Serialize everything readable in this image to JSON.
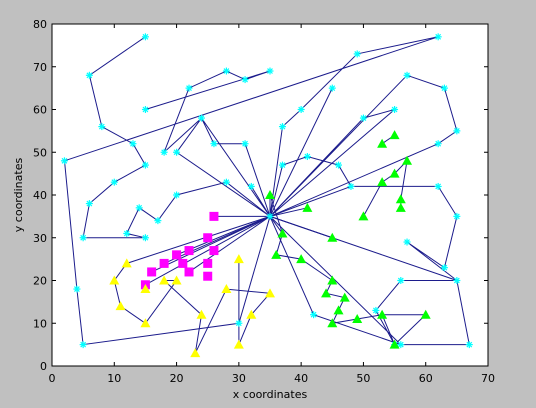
{
  "chart_data": {
    "type": "scatter",
    "xlabel": "x coordinates",
    "ylabel": "y coordinates",
    "xlim": [
      0,
      70
    ],
    "ylim": [
      0,
      80
    ],
    "xticks": [
      0,
      10,
      20,
      30,
      40,
      50,
      60,
      70
    ],
    "yticks": [
      0,
      10,
      20,
      30,
      40,
      50,
      60,
      70,
      80
    ],
    "grid": false,
    "background": "#ffffff",
    "figure_background": "#c0c0c0",
    "hub": [
      35,
      35
    ],
    "tour": {
      "color": "#1c1c8c",
      "marker": "asterisk",
      "marker_color": "#00ffff",
      "points": [
        [
          15,
          77
        ],
        [
          6,
          68
        ],
        [
          8,
          56
        ],
        [
          13,
          52
        ],
        [
          15,
          47
        ],
        [
          10,
          43
        ],
        [
          6,
          38
        ],
        [
          5,
          30
        ],
        [
          15,
          30
        ],
        [
          12,
          31
        ],
        [
          14,
          37
        ],
        [
          17,
          34
        ],
        [
          20,
          40
        ],
        [
          28,
          43
        ],
        [
          35,
          35
        ],
        [
          20,
          50
        ],
        [
          24,
          58
        ],
        [
          26,
          52
        ],
        [
          31,
          52
        ],
        [
          35,
          35
        ],
        [
          37,
          47
        ],
        [
          41,
          49
        ],
        [
          46,
          47
        ],
        [
          48,
          42
        ],
        [
          62,
          42
        ],
        [
          65,
          35
        ],
        [
          63,
          23
        ],
        [
          57,
          29
        ],
        [
          65,
          20
        ],
        [
          67,
          5
        ],
        [
          55,
          5
        ],
        [
          52,
          13
        ],
        [
          56,
          20
        ],
        [
          65,
          20
        ],
        [
          35,
          35
        ],
        [
          37,
          56
        ],
        [
          40,
          60
        ],
        [
          49,
          73
        ],
        [
          62,
          77
        ],
        [
          2,
          48
        ],
        [
          4,
          18
        ],
        [
          5,
          5
        ],
        [
          30,
          10
        ],
        [
          35,
          35
        ],
        [
          32,
          42
        ],
        [
          35,
          35
        ],
        [
          42,
          12
        ],
        [
          56,
          5
        ],
        [
          35,
          35
        ],
        [
          45,
          65
        ],
        [
          35,
          35
        ],
        [
          57,
          68
        ],
        [
          63,
          65
        ],
        [
          65,
          55
        ],
        [
          62,
          52
        ],
        [
          35,
          35
        ],
        [
          50,
          58
        ],
        [
          55,
          60
        ],
        [
          35,
          35
        ],
        [
          24,
          58
        ],
        [
          18,
          50
        ],
        [
          22,
          65
        ],
        [
          28,
          69
        ],
        [
          31,
          67
        ],
        [
          35,
          69
        ],
        [
          15,
          60
        ]
      ]
    },
    "squares": {
      "color": "#ff00ff",
      "marker": "square",
      "points": [
        [
          26,
          35
        ],
        [
          25,
          30
        ],
        [
          26,
          27
        ],
        [
          22,
          27
        ],
        [
          20,
          26
        ],
        [
          21,
          24
        ],
        [
          18,
          24
        ],
        [
          16,
          22
        ],
        [
          22,
          22
        ],
        [
          25,
          24
        ],
        [
          15,
          19
        ],
        [
          25,
          21
        ]
      ]
    },
    "yellow_triangles": {
      "color": "#ffff00",
      "marker": "triangle",
      "points": [
        [
          12,
          24
        ],
        [
          10,
          20
        ],
        [
          15,
          18
        ],
        [
          18,
          20
        ],
        [
          20,
          20
        ],
        [
          11,
          14
        ],
        [
          15,
          10
        ],
        [
          24,
          12
        ],
        [
          23,
          3
        ],
        [
          30,
          5
        ],
        [
          32,
          12
        ],
        [
          35,
          17
        ],
        [
          28,
          18
        ],
        [
          30,
          25
        ]
      ]
    },
    "green_triangles": {
      "color": "#00ff00",
      "marker": "triangle",
      "points": [
        [
          35,
          40
        ],
        [
          37,
          31
        ],
        [
          36,
          26
        ],
        [
          40,
          25
        ],
        [
          41,
          37
        ],
        [
          45,
          30
        ],
        [
          50,
          35
        ],
        [
          53,
          43
        ],
        [
          55,
          45
        ],
        [
          57,
          48
        ],
        [
          56,
          39
        ],
        [
          56,
          37
        ],
        [
          55,
          54
        ],
        [
          53,
          52
        ],
        [
          45,
          20
        ],
        [
          44,
          17
        ],
        [
          47,
          16
        ],
        [
          46,
          13
        ],
        [
          45,
          10
        ],
        [
          49,
          11
        ],
        [
          53,
          12
        ],
        [
          55,
          5
        ],
        [
          60,
          12
        ]
      ]
    },
    "hub_edges": {
      "color": "#1c1c8c",
      "points": [
        [
          26,
          35
        ],
        [
          15,
          19
        ],
        [
          16,
          22
        ],
        [
          18,
          24
        ],
        [
          20,
          26
        ],
        [
          22,
          22
        ],
        [
          12,
          24
        ],
        [
          35,
          40
        ],
        [
          41,
          37
        ],
        [
          45,
          30
        ],
        [
          37,
          31
        ],
        [
          48,
          42
        ]
      ]
    },
    "yellow_links": [
      [
        [
          12,
          24
        ],
        [
          10,
          20
        ],
        [
          11,
          14
        ],
        [
          15,
          10
        ],
        [
          20,
          20
        ],
        [
          18,
          20
        ],
        [
          24,
          12
        ],
        [
          23,
          3
        ],
        [
          28,
          18
        ],
        [
          35,
          17
        ],
        [
          32,
          12
        ],
        [
          30,
          5
        ],
        [
          30,
          25
        ]
      ]
    ],
    "green_links": [
      [
        [
          35,
          40
        ],
        [
          37,
          31
        ],
        [
          36,
          26
        ],
        [
          40,
          25
        ],
        [
          45,
          20
        ],
        [
          44,
          17
        ],
        [
          47,
          16
        ],
        [
          46,
          13
        ],
        [
          45,
          10
        ],
        [
          49,
          11
        ],
        [
          53,
          12
        ],
        [
          60,
          12
        ],
        [
          55,
          5
        ],
        [
          53,
          12
        ]
      ],
      [
        [
          50,
          35
        ],
        [
          53,
          43
        ],
        [
          55,
          45
        ],
        [
          57,
          48
        ],
        [
          56,
          39
        ],
        [
          56,
          37
        ]
      ],
      [
        [
          53,
          52
        ],
        [
          55,
          54
        ]
      ]
    ]
  }
}
